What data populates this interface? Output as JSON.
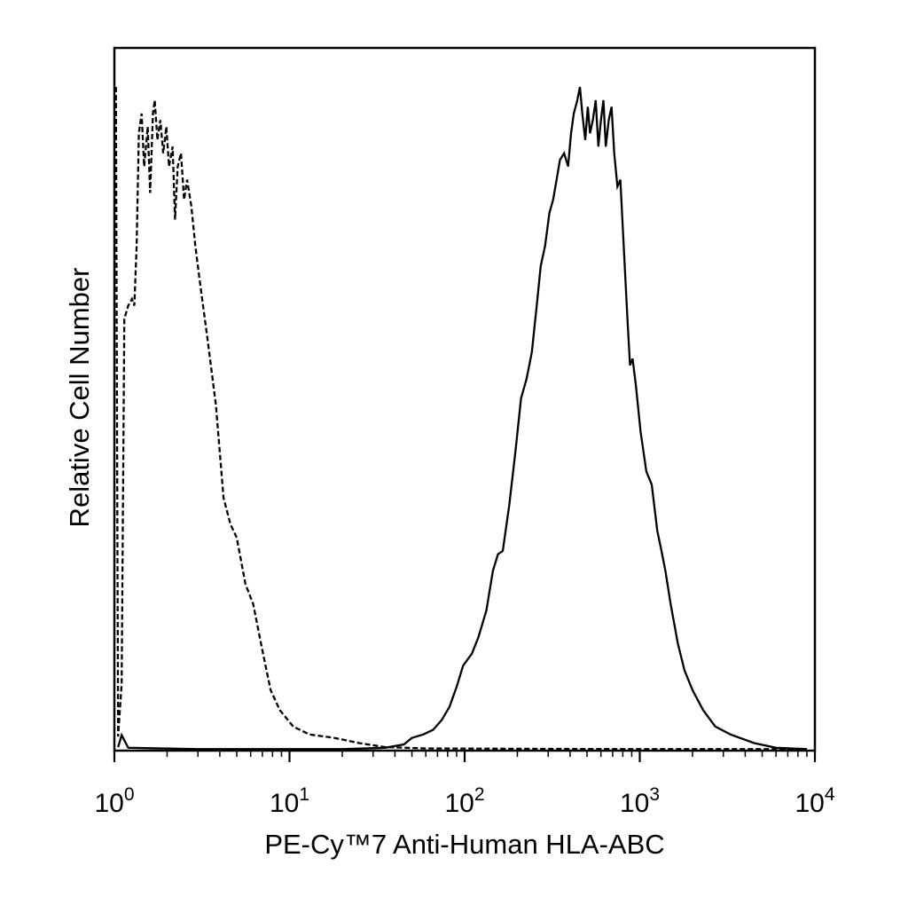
{
  "chart_data": {
    "type": "line",
    "title": "",
    "xlabel": "PE-Cy™7 Anti-Human HLA-ABC",
    "ylabel": "Relative Cell Number",
    "x_scale": "log",
    "xlim": [
      1,
      10000
    ],
    "ylim": [
      0,
      100
    ],
    "grid": false,
    "legend": "none",
    "x_ticks": [
      {
        "value": 1,
        "base": "10",
        "exp": "0"
      },
      {
        "value": 10,
        "base": "10",
        "exp": "1"
      },
      {
        "value": 100,
        "base": "10",
        "exp": "2"
      },
      {
        "value": 1000,
        "base": "10",
        "exp": "3"
      },
      {
        "value": 10000,
        "base": "10",
        "exp": "4"
      }
    ],
    "series": [
      {
        "style": "dashed",
        "color": "#000000",
        "points": [
          [
            1.02,
            100
          ],
          [
            1.05,
            2
          ],
          [
            1.1,
            10
          ],
          [
            1.14,
            65
          ],
          [
            1.2,
            67
          ],
          [
            1.26,
            68
          ],
          [
            1.3,
            67
          ],
          [
            1.34,
            76
          ],
          [
            1.38,
            93
          ],
          [
            1.43,
            96
          ],
          [
            1.48,
            88
          ],
          [
            1.55,
            94
          ],
          [
            1.6,
            84
          ],
          [
            1.66,
            96
          ],
          [
            1.7,
            98
          ],
          [
            1.76,
            92
          ],
          [
            1.83,
            95
          ],
          [
            1.9,
            90
          ],
          [
            1.98,
            94
          ],
          [
            2.05,
            88
          ],
          [
            2.15,
            91
          ],
          [
            2.22,
            80
          ],
          [
            2.3,
            88
          ],
          [
            2.4,
            90
          ],
          [
            2.5,
            83
          ],
          [
            2.6,
            86
          ],
          [
            2.75,
            82
          ],
          [
            2.9,
            76
          ],
          [
            3.1,
            70
          ],
          [
            3.4,
            62
          ],
          [
            3.8,
            52
          ],
          [
            4.2,
            38
          ],
          [
            4.6,
            34
          ],
          [
            5.0,
            32
          ],
          [
            5.6,
            25
          ],
          [
            6.2,
            22
          ],
          [
            7.0,
            15
          ],
          [
            7.8,
            9
          ],
          [
            8.8,
            6
          ],
          [
            10.5,
            3.5
          ],
          [
            13,
            2.3
          ],
          [
            18,
            1.8
          ],
          [
            25,
            1.0
          ],
          [
            35,
            0.4
          ],
          [
            60,
            0.2
          ],
          [
            200,
            0.15
          ],
          [
            1000,
            0.1
          ],
          [
            9000,
            0.1
          ]
        ]
      },
      {
        "style": "solid",
        "color": "#000000",
        "points": [
          [
            1.05,
            0.4
          ],
          [
            1.1,
            2.2
          ],
          [
            1.2,
            0.3
          ],
          [
            3,
            0.1
          ],
          [
            20,
            0.1
          ],
          [
            35,
            0.3
          ],
          [
            45,
            0.8
          ],
          [
            50,
            1.8
          ],
          [
            58,
            2.3
          ],
          [
            66,
            3.0
          ],
          [
            74,
            4.5
          ],
          [
            82,
            6.5
          ],
          [
            90,
            9.5
          ],
          [
            98,
            12.7
          ],
          [
            110,
            14.5
          ],
          [
            120,
            17
          ],
          [
            133,
            21
          ],
          [
            145,
            27
          ],
          [
            155,
            29.5
          ],
          [
            165,
            30
          ],
          [
            180,
            37
          ],
          [
            195,
            45
          ],
          [
            210,
            53
          ],
          [
            226,
            56
          ],
          [
            242,
            60
          ],
          [
            258,
            67
          ],
          [
            272,
            73
          ],
          [
            288,
            76
          ],
          [
            305,
            81
          ],
          [
            320,
            83
          ],
          [
            335,
            86
          ],
          [
            350,
            89
          ],
          [
            370,
            90
          ],
          [
            390,
            88
          ],
          [
            405,
            93
          ],
          [
            420,
            96
          ],
          [
            440,
            98
          ],
          [
            455,
            100
          ],
          [
            470,
            96
          ],
          [
            488,
            92
          ],
          [
            505,
            97
          ],
          [
            520,
            93
          ],
          [
            540,
            95
          ],
          [
            560,
            98
          ],
          [
            580,
            91
          ],
          [
            600,
            95
          ],
          [
            620,
            98
          ],
          [
            640,
            91
          ],
          [
            665,
            95
          ],
          [
            690,
            97
          ],
          [
            715,
            90
          ],
          [
            745,
            85
          ],
          [
            775,
            86
          ],
          [
            810,
            76
          ],
          [
            850,
            65
          ],
          [
            880,
            58
          ],
          [
            910,
            59
          ],
          [
            950,
            55
          ],
          [
            1010,
            48
          ],
          [
            1090,
            42
          ],
          [
            1170,
            40
          ],
          [
            1260,
            33
          ],
          [
            1330,
            30
          ],
          [
            1400,
            27
          ],
          [
            1500,
            22
          ],
          [
            1650,
            16
          ],
          [
            1800,
            12
          ],
          [
            2000,
            9
          ],
          [
            2300,
            6
          ],
          [
            2700,
            3.5
          ],
          [
            3300,
            2.3
          ],
          [
            4500,
            1.0
          ],
          [
            6000,
            0.3
          ],
          [
            9000,
            0.1
          ]
        ]
      }
    ]
  }
}
